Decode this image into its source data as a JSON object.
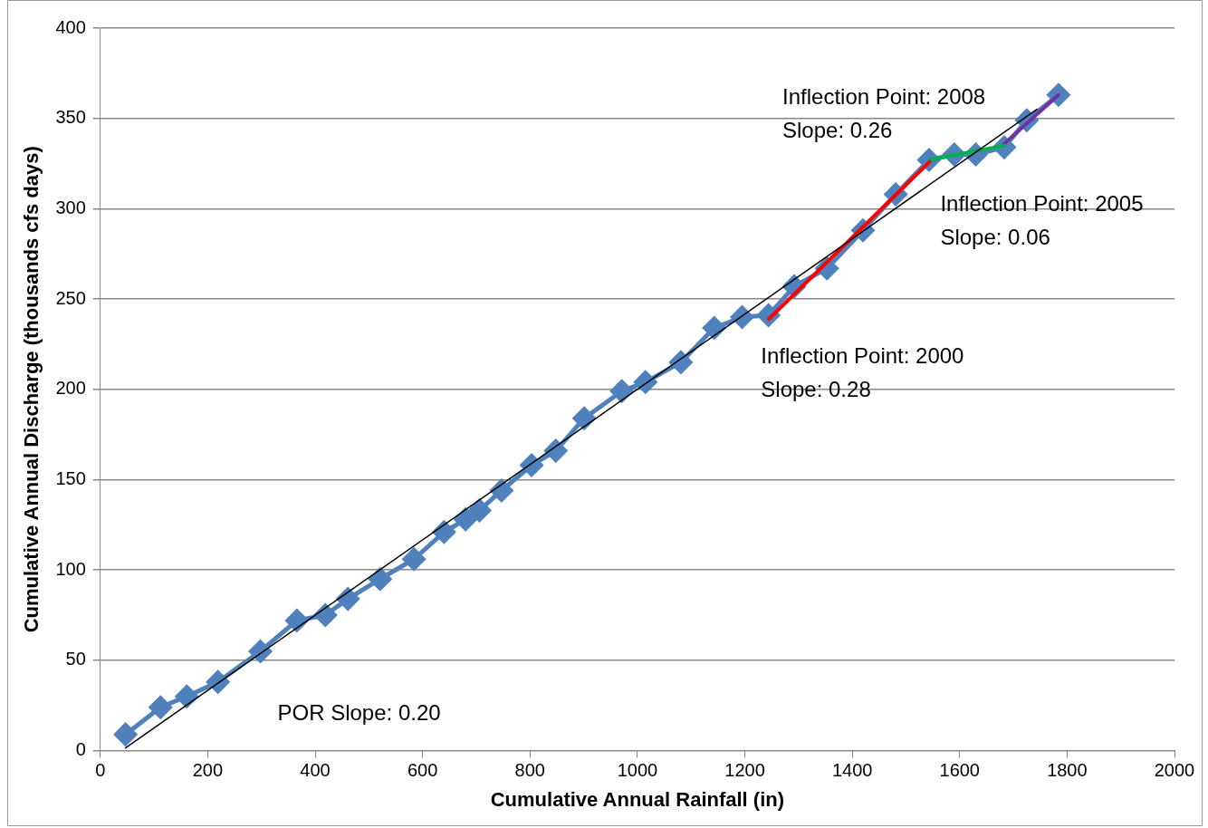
{
  "chart_data": {
    "type": "line",
    "xlabel": "Cumulative Annual Rainfall (in)",
    "ylabel": "Cumulative Annual Discharge (thousands cfs days)",
    "xlim": [
      0,
      2000
    ],
    "xticks": [
      0,
      200,
      400,
      600,
      800,
      1000,
      1200,
      1400,
      1600,
      1800,
      2000
    ],
    "ylim": [
      0,
      400
    ],
    "yticks": [
      0,
      50,
      100,
      150,
      200,
      250,
      300,
      350,
      400
    ],
    "grid": "y",
    "legend": false,
    "marker": "diamond",
    "line_style": "solid",
    "series": [
      {
        "color": "#4f81bd",
        "x": [
          47,
          112,
          161,
          219,
          298,
          366,
          419,
          461,
          521,
          584,
          640,
          680,
          706,
          747,
          803,
          848,
          901,
          971,
          1015,
          1081,
          1143,
          1195,
          1244,
          1292,
          1353,
          1420,
          1481,
          1543,
          1590,
          1630,
          1683,
          1725,
          1784
        ],
        "values": [
          9,
          24,
          30,
          38,
          55,
          72,
          75,
          84,
          95,
          106,
          121,
          128,
          133,
          144,
          158,
          166,
          184,
          199,
          204,
          215,
          234,
          240,
          241,
          257,
          267,
          288,
          308,
          327,
          330,
          330,
          334,
          349,
          363
        ]
      },
      {
        "color": "#000000",
        "marker": "none",
        "x": [
          47,
          1744
        ],
        "values": [
          1.5,
          355
        ]
      },
      {
        "color": "#ff0000",
        "marker": "none",
        "x": [
          1245,
          1544
        ],
        "values": [
          239,
          326
        ]
      },
      {
        "color": "#00b050",
        "marker": "none",
        "x": [
          1544,
          1683
        ],
        "values": [
          327,
          335
        ]
      },
      {
        "color": "#7030a0",
        "marker": "none",
        "x": [
          1683,
          1784
        ],
        "values": [
          336,
          363
        ]
      }
    ],
    "annotations": [
      "Inflection Point: 2008\nSlope: 0.26",
      "Inflection Point: 2005\nSlope: 0.06",
      "Inflection Point: 2000\nSlope: 0.28",
      "POR Slope: 0.20"
    ]
  }
}
